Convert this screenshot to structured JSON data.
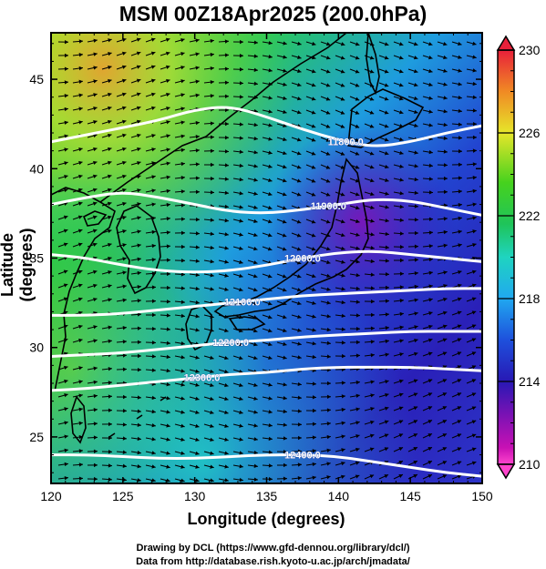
{
  "title": "MSM 00Z18Apr2025 (200.0hPa)",
  "xlabel": "Longitude (degrees)",
  "ylabel": "Latitude  (degrees)",
  "credit_line1": "Drawing by DCL (https://www.gfd-dennou.org/library/dcl/)",
  "credit_line2": "Data from http://database.rish.kyoto-u.ac.jp/arch/jmadata/",
  "map": {
    "lon_range": [
      120,
      150
    ],
    "lat_range": [
      22.4,
      47.6
    ],
    "lon_ticks": [
      "120",
      "125",
      "130",
      "135",
      "140",
      "145",
      "150"
    ],
    "lat_ticks": [
      "25",
      "30",
      "35",
      "40",
      "45"
    ],
    "lon_tick_values": [
      120,
      125,
      130,
      135,
      140,
      145,
      150
    ],
    "lat_tick_values": [
      25,
      30,
      35,
      40,
      45
    ],
    "contours": [
      {
        "label": "11800.0",
        "label_lon": 140.5,
        "lat_at": [
          41.5,
          41.9,
          42.3,
          42.7,
          43.3,
          43.5,
          42.9,
          42.2,
          41.6,
          41.2,
          41.5,
          42.0,
          42.4
        ]
      },
      {
        "label": "11900.0",
        "label_lon": 139.3,
        "lat_at": [
          38.0,
          38.4,
          38.7,
          38.4,
          38.0,
          37.6,
          37.5,
          37.7,
          38.0,
          38.3,
          38.2,
          37.8,
          37.4
        ]
      },
      {
        "label": "12000.0",
        "label_lon": 137.5,
        "lat_at": [
          35.2,
          35.0,
          34.6,
          34.3,
          34.2,
          34.3,
          34.6,
          35.0,
          35.3,
          35.4,
          35.2,
          35.0,
          34.8
        ]
      },
      {
        "label": "12100.0",
        "label_lon": 133.3,
        "lat_at": [
          31.8,
          31.8,
          31.9,
          32.1,
          32.3,
          32.5,
          32.7,
          32.9,
          33.0,
          33.1,
          33.2,
          33.3,
          33.3
        ]
      },
      {
        "label": "12200.0",
        "label_lon": 132.5,
        "lat_at": [
          29.5,
          29.6,
          29.7,
          29.9,
          30.1,
          30.3,
          30.4,
          30.6,
          30.7,
          30.8,
          30.9,
          30.9,
          30.9
        ]
      },
      {
        "label": "12300.0",
        "label_lon": 130.5,
        "lat_at": [
          27.6,
          27.7,
          27.9,
          28.1,
          28.3,
          28.5,
          28.6,
          28.8,
          28.9,
          28.9,
          28.9,
          28.8,
          28.7
        ]
      },
      {
        "label": "12400.0",
        "label_lon": 137.5,
        "lat_at": [
          24.0,
          24.0,
          23.9,
          23.8,
          23.8,
          23.9,
          24.0,
          24.0,
          23.9,
          23.6,
          23.3,
          23.0,
          22.8
        ]
      }
    ]
  },
  "colorbar": {
    "labels": [
      "230",
      "226",
      "222",
      "218",
      "214",
      "210"
    ],
    "values": [
      230,
      226,
      222,
      218,
      214,
      210
    ],
    "range": [
      210,
      230
    ],
    "colors_top_to_bottom": [
      "#e8203a",
      "#f08a24",
      "#e6e62a",
      "#46d21e",
      "#1fc45a",
      "#1fd4c0",
      "#20a8f0",
      "#1e50dc",
      "#2818b4",
      "#7a12b4",
      "#c811b4",
      "#ff44cc"
    ]
  }
}
